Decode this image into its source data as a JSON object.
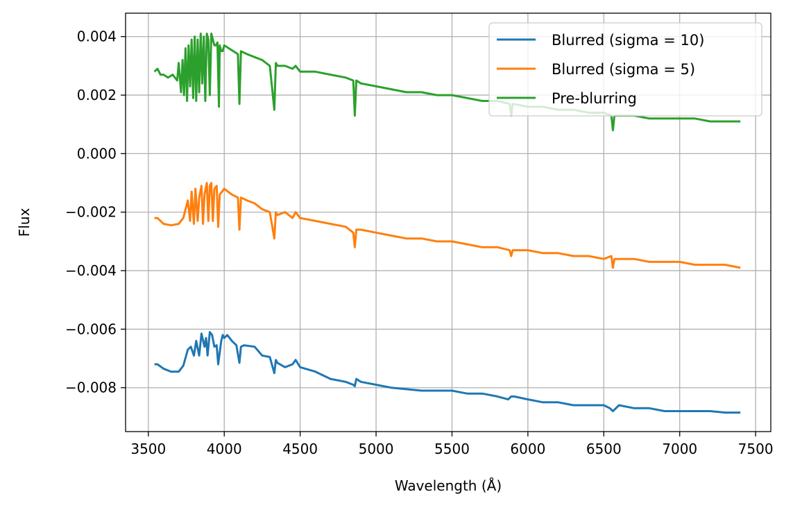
{
  "chart_data": {
    "type": "line",
    "title": "",
    "xlabel": "Wavelength (Å)",
    "ylabel": "Flux",
    "xlim": [
      3350,
      7600
    ],
    "ylim": [
      -0.0095,
      0.0048
    ],
    "xticks": [
      3500,
      4000,
      4500,
      5000,
      5500,
      6000,
      6500,
      7000,
      7500
    ],
    "xtick_labels": [
      "3500",
      "4000",
      "4500",
      "5000",
      "5500",
      "6000",
      "6500",
      "7000",
      "7500"
    ],
    "yticks": [
      0.004,
      0.002,
      0.0,
      -0.002,
      -0.004,
      -0.006,
      -0.008
    ],
    "ytick_labels": [
      "0.004",
      "0.002",
      "0.000",
      "−0.002",
      "−0.004",
      "−0.006",
      "−0.008"
    ],
    "grid": true,
    "legend_position": "top-right",
    "series": [
      {
        "name": "Blurred (sigma = 10)",
        "color": "#1f77b4",
        "x": [
          3540,
          3560,
          3600,
          3650,
          3700,
          3730,
          3760,
          3780,
          3800,
          3815,
          3835,
          3850,
          3870,
          3880,
          3890,
          3905,
          3920,
          3935,
          3950,
          3960,
          3970,
          3980,
          3990,
          4000,
          4020,
          4050,
          4080,
          4100,
          4110,
          4130,
          4200,
          4250,
          4300,
          4330,
          4340,
          4350,
          4400,
          4450,
          4470,
          4500,
          4600,
          4700,
          4800,
          4850,
          4860,
          4870,
          4900,
          5000,
          5100,
          5200,
          5300,
          5400,
          5500,
          5600,
          5700,
          5800,
          5870,
          5890,
          5910,
          6000,
          6100,
          6200,
          6300,
          6400,
          6500,
          6540,
          6560,
          6580,
          6600,
          6700,
          6800,
          6900,
          7000,
          7100,
          7200,
          7300,
          7400
        ],
        "y": [
          -0.0072,
          -0.0072,
          -0.00735,
          -0.00745,
          -0.00745,
          -0.00725,
          -0.0067,
          -0.0066,
          -0.0069,
          -0.0064,
          -0.0069,
          -0.00615,
          -0.0066,
          -0.0063,
          -0.0069,
          -0.0061,
          -0.0062,
          -0.0066,
          -0.00655,
          -0.0072,
          -0.0068,
          -0.0064,
          -0.0062,
          -0.0063,
          -0.0062,
          -0.0064,
          -0.00655,
          -0.00715,
          -0.0066,
          -0.00655,
          -0.0066,
          -0.0069,
          -0.00695,
          -0.0075,
          -0.00705,
          -0.00715,
          -0.0073,
          -0.0072,
          -0.00705,
          -0.0073,
          -0.00745,
          -0.0077,
          -0.0078,
          -0.0079,
          -0.00795,
          -0.0077,
          -0.0078,
          -0.0079,
          -0.008,
          -0.00805,
          -0.0081,
          -0.0081,
          -0.0081,
          -0.0082,
          -0.0082,
          -0.0083,
          -0.0084,
          -0.0083,
          -0.0083,
          -0.0084,
          -0.0085,
          -0.0085,
          -0.0086,
          -0.0086,
          -0.0086,
          -0.0087,
          -0.0088,
          -0.0087,
          -0.0086,
          -0.0087,
          -0.0087,
          -0.0088,
          -0.0088,
          -0.0088,
          -0.0088,
          -0.00885,
          -0.00885
        ]
      },
      {
        "name": "Blurred (sigma = 5)",
        "color": "#ff7f0e",
        "x": [
          3540,
          3560,
          3600,
          3650,
          3700,
          3730,
          3760,
          3775,
          3785,
          3800,
          3810,
          3825,
          3835,
          3850,
          3860,
          3870,
          3885,
          3895,
          3905,
          3915,
          3925,
          3935,
          3950,
          3960,
          3970,
          3985,
          4000,
          4050,
          4090,
          4100,
          4110,
          4150,
          4200,
          4250,
          4300,
          4330,
          4340,
          4350,
          4400,
          4450,
          4470,
          4500,
          4600,
          4700,
          4800,
          4850,
          4860,
          4870,
          4900,
          5000,
          5100,
          5200,
          5300,
          5400,
          5500,
          5600,
          5700,
          5800,
          5880,
          5890,
          5900,
          6000,
          6100,
          6200,
          6300,
          6400,
          6500,
          6550,
          6560,
          6570,
          6600,
          6700,
          6800,
          6900,
          7000,
          7100,
          7200,
          7300,
          7400
        ],
        "y": [
          -0.0022,
          -0.0022,
          -0.0024,
          -0.00245,
          -0.0024,
          -0.0022,
          -0.0016,
          -0.0023,
          -0.0013,
          -0.0024,
          -0.0012,
          -0.0023,
          -0.0015,
          -0.0011,
          -0.0024,
          -0.0014,
          -0.001,
          -0.0023,
          -0.0011,
          -0.001,
          -0.0023,
          -0.0012,
          -0.0011,
          -0.0025,
          -0.0014,
          -0.0013,
          -0.0012,
          -0.0014,
          -0.0015,
          -0.0026,
          -0.0015,
          -0.0016,
          -0.0017,
          -0.0019,
          -0.002,
          -0.0029,
          -0.002,
          -0.0021,
          -0.002,
          -0.0022,
          -0.002,
          -0.0022,
          -0.0023,
          -0.0024,
          -0.0025,
          -0.0027,
          -0.0032,
          -0.0026,
          -0.0026,
          -0.0027,
          -0.0028,
          -0.0029,
          -0.0029,
          -0.003,
          -0.003,
          -0.0031,
          -0.0032,
          -0.0032,
          -0.0033,
          -0.0035,
          -0.0033,
          -0.0033,
          -0.0034,
          -0.0034,
          -0.0035,
          -0.0035,
          -0.0036,
          -0.0035,
          -0.0039,
          -0.0036,
          -0.0036,
          -0.0036,
          -0.0037,
          -0.0037,
          -0.0037,
          -0.0038,
          -0.0038,
          -0.0038,
          -0.0039
        ]
      },
      {
        "name": "Pre-blurring",
        "color": "#2ca02c",
        "x": [
          3540,
          3560,
          3580,
          3600,
          3630,
          3660,
          3690,
          3700,
          3715,
          3725,
          3735,
          3745,
          3755,
          3765,
          3775,
          3785,
          3795,
          3805,
          3815,
          3825,
          3835,
          3845,
          3855,
          3865,
          3875,
          3885,
          3895,
          3905,
          3915,
          3925,
          3935,
          3945,
          3955,
          3965,
          3970,
          3980,
          3990,
          4000,
          4030,
          4060,
          4090,
          4100,
          4110,
          4150,
          4200,
          4250,
          4300,
          4330,
          4340,
          4350,
          4400,
          4450,
          4470,
          4500,
          4600,
          4700,
          4800,
          4850,
          4860,
          4870,
          4900,
          5000,
          5100,
          5200,
          5300,
          5400,
          5500,
          5600,
          5700,
          5800,
          5880,
          5890,
          5900,
          6000,
          6100,
          6200,
          6300,
          6400,
          6500,
          6550,
          6560,
          6570,
          6600,
          6700,
          6800,
          6900,
          7000,
          7100,
          7200,
          7300,
          7400
        ],
        "y": [
          0.0028,
          0.0029,
          0.0027,
          0.0027,
          0.0026,
          0.0027,
          0.0025,
          0.0031,
          0.0021,
          0.0032,
          0.002,
          0.0036,
          0.0018,
          0.0037,
          0.0023,
          0.0039,
          0.0019,
          0.004,
          0.0018,
          0.0039,
          0.0021,
          0.0041,
          0.0024,
          0.004,
          0.0018,
          0.0041,
          0.0039,
          0.002,
          0.0041,
          0.0039,
          0.0037,
          0.0037,
          0.0038,
          0.0016,
          0.0037,
          0.0035,
          0.0035,
          0.0037,
          0.0036,
          0.0035,
          0.0034,
          0.0017,
          0.0035,
          0.0034,
          0.0033,
          0.0032,
          0.003,
          0.0015,
          0.0031,
          0.003,
          0.003,
          0.0029,
          0.003,
          0.0028,
          0.0028,
          0.0027,
          0.0026,
          0.0025,
          0.0013,
          0.0025,
          0.0024,
          0.0023,
          0.0022,
          0.0021,
          0.0021,
          0.002,
          0.002,
          0.0019,
          0.0018,
          0.0018,
          0.0017,
          0.0013,
          0.0017,
          0.0016,
          0.0016,
          0.0015,
          0.0015,
          0.0014,
          0.0014,
          0.0013,
          0.0008,
          0.0013,
          0.0013,
          0.0013,
          0.0012,
          0.0012,
          0.0012,
          0.0012,
          0.0011,
          0.0011,
          0.0011
        ]
      }
    ]
  }
}
